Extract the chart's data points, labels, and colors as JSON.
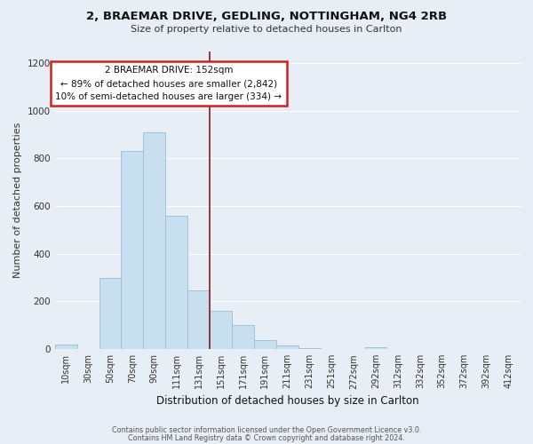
{
  "title": "2, BRAEMAR DRIVE, GEDLING, NOTTINGHAM, NG4 2RB",
  "subtitle": "Size of property relative to detached houses in Carlton",
  "xlabel": "Distribution of detached houses by size in Carlton",
  "ylabel": "Number of detached properties",
  "bar_labels": [
    "10sqm",
    "30sqm",
    "50sqm",
    "70sqm",
    "90sqm",
    "111sqm",
    "131sqm",
    "151sqm",
    "171sqm",
    "191sqm",
    "211sqm",
    "231sqm",
    "251sqm",
    "272sqm",
    "292sqm",
    "312sqm",
    "332sqm",
    "352sqm",
    "372sqm",
    "392sqm",
    "412sqm"
  ],
  "bar_values": [
    20,
    0,
    300,
    830,
    910,
    560,
    245,
    160,
    100,
    38,
    15,
    3,
    0,
    0,
    10,
    0,
    0,
    0,
    0,
    0,
    0
  ],
  "bar_color": "#c8dff0",
  "bar_edge_color": "#9abcd8",
  "vline_color": "#8b1a1a",
  "annotation_text": "2 BRAEMAR DRIVE: 152sqm\n← 89% of detached houses are smaller (2,842)\n10% of semi-detached houses are larger (334) →",
  "annotation_box_color": "#ffffff",
  "annotation_box_edge": "#cc2222",
  "ylim": [
    0,
    1250
  ],
  "yticks": [
    0,
    200,
    400,
    600,
    800,
    1000,
    1200
  ],
  "footer1": "Contains HM Land Registry data © Crown copyright and database right 2024.",
  "footer2": "Contains public sector information licensed under the Open Government Licence v3.0.",
  "background_color": "#e8eef5",
  "plot_bg_color": "#e8eef5",
  "grid_color": "#ffffff"
}
